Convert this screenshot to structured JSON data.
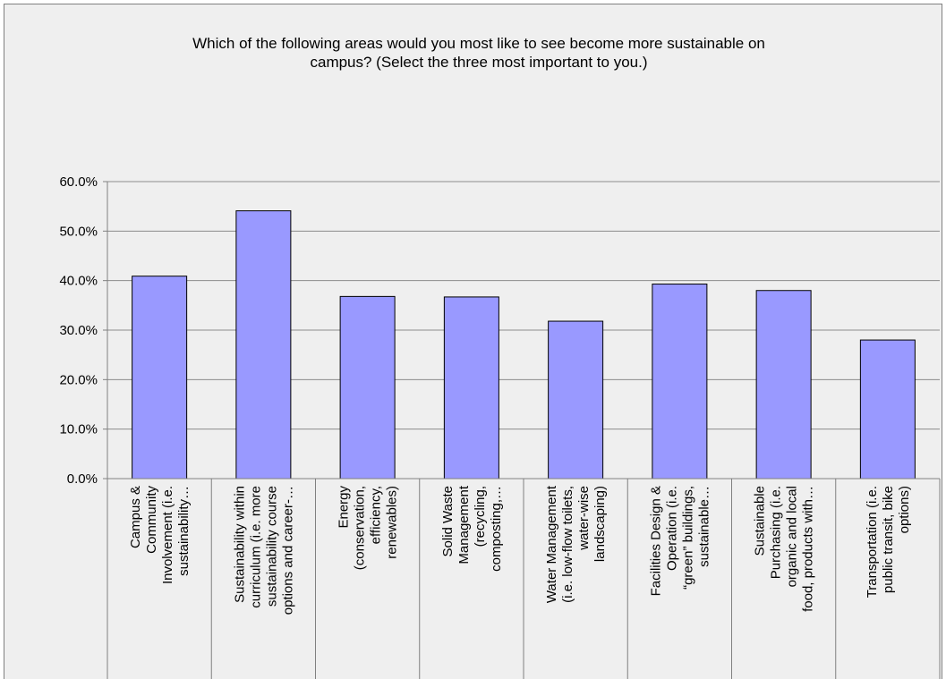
{
  "chart_data": {
    "type": "bar",
    "title": "Which of the following areas would you most like to see become more sustainable on campus? (Select the three most important to you.)",
    "title_lines": [
      "Which of the following areas would you most like to see become more sustainable on",
      "campus? (Select the three most important to you.)"
    ],
    "xlabel": "",
    "ylabel": "",
    "ylim": [
      0,
      60
    ],
    "y_tick_labels": [
      "60.0%",
      "50.0%",
      "40.0%",
      "30.0%",
      "20.0%",
      "10.0%",
      "0.0%"
    ],
    "grid": true,
    "legend": "none",
    "bar_color": "#9999ff",
    "categories": [
      [
        "Campus &",
        "Community",
        "Involvement (i.e.",
        "sustainability…"
      ],
      [
        "Sustainability within",
        "curriculum (i.e. more",
        "sustainability course",
        "options and career-…"
      ],
      [
        "Energy",
        "(conservation,",
        "efficiency,",
        "renewables)"
      ],
      [
        "Solid Waste",
        "Management",
        "(recycling,",
        "composting,…"
      ],
      [
        "Water Management",
        "(i.e. low-flow toilets,",
        "water-wise",
        "landscaping)"
      ],
      [
        "Facilities Design &",
        "Operation (i.e.",
        "“green” buildings,",
        "sustainable…"
      ],
      [
        "Sustainable",
        "Purchasing (i.e.",
        "organic and local",
        "food, products with…"
      ],
      [
        "Transportation (i.e.",
        "public transit, bike",
        "options)"
      ]
    ],
    "values": [
      40.9,
      54.1,
      36.8,
      36.7,
      31.8,
      39.3,
      38.0,
      28.0
    ]
  }
}
